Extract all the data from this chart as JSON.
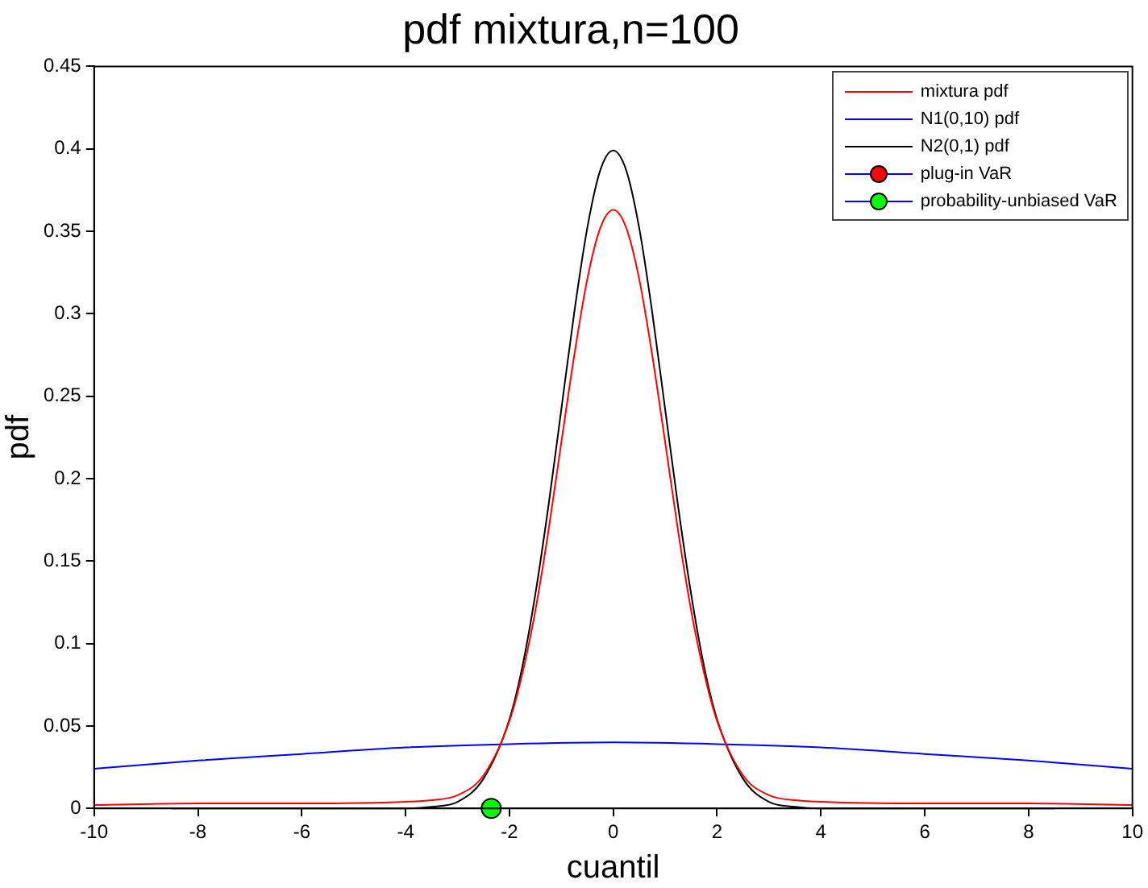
{
  "chart_data": {
    "type": "line",
    "title": "pdf mixtura,n=100",
    "xlabel": "cuantil",
    "ylabel": "pdf",
    "xlim": [
      -10,
      10
    ],
    "xticks": [
      -10,
      -8,
      -6,
      -4,
      -2,
      0,
      2,
      4,
      6,
      8,
      10
    ],
    "ylim": [
      0,
      0.45
    ],
    "yticks": [
      0,
      0.05,
      0.1,
      0.15,
      0.2,
      0.25,
      0.3,
      0.35,
      0.4,
      0.45
    ],
    "grid": false,
    "legend": "top right",
    "marker": "none",
    "line_style": "solid",
    "series": [
      {
        "name": "mixtura pdf",
        "color": "#ff0000",
        "x": [
          -10,
          -8,
          -6,
          -4,
          -3.5,
          -3,
          -2.5,
          -2,
          -1.75,
          -1.5,
          -1.25,
          -1,
          -0.75,
          -0.5,
          -0.25,
          0,
          0.25,
          0.5,
          0.75,
          1,
          1.25,
          1.5,
          1.75,
          2,
          2.5,
          3,
          3.5,
          4,
          6,
          8,
          10
        ],
        "values": [
          0.002,
          0.003,
          0.003,
          0.004,
          0.005,
          0.008,
          0.02,
          0.053,
          0.082,
          0.12,
          0.168,
          0.222,
          0.275,
          0.321,
          0.352,
          0.363,
          0.352,
          0.321,
          0.275,
          0.222,
          0.168,
          0.12,
          0.082,
          0.053,
          0.02,
          0.008,
          0.005,
          0.004,
          0.003,
          0.003,
          0.002
        ]
      },
      {
        "name": "N1(0,10) pdf",
        "color": "#0000ff",
        "x": [
          -10,
          -8,
          -6,
          -4,
          -2,
          0,
          2,
          4,
          6,
          8,
          10
        ],
        "values": [
          0.024,
          0.029,
          0.033,
          0.037,
          0.039,
          0.04,
          0.039,
          0.037,
          0.033,
          0.029,
          0.024
        ]
      },
      {
        "name": "N2(0,1) pdf",
        "color": "#000000",
        "x": [
          -8.5,
          -4,
          -3.5,
          -3,
          -2.5,
          -2,
          -1.75,
          -1.5,
          -1.25,
          -1,
          -0.75,
          -0.5,
          -0.25,
          0,
          0.25,
          0.5,
          0.75,
          1,
          1.25,
          1.5,
          1.75,
          2,
          2.5,
          3,
          3.5,
          4,
          8.5
        ],
        "values": [
          0,
          0,
          0.001,
          0.004,
          0.018,
          0.054,
          0.086,
          0.13,
          0.183,
          0.242,
          0.301,
          0.352,
          0.387,
          0.399,
          0.387,
          0.352,
          0.301,
          0.242,
          0.183,
          0.13,
          0.086,
          0.054,
          0.018,
          0.004,
          0.001,
          0,
          0
        ]
      },
      {
        "name": "plug-in VaR",
        "type": "scatter",
        "marker": "circle",
        "color": "#ff0000"
      },
      {
        "name": "probability-unbiased VaR",
        "type": "scatter",
        "marker": "circle",
        "color": "#00ff00",
        "x": [
          -2.35
        ],
        "values": [
          0
        ]
      }
    ]
  }
}
